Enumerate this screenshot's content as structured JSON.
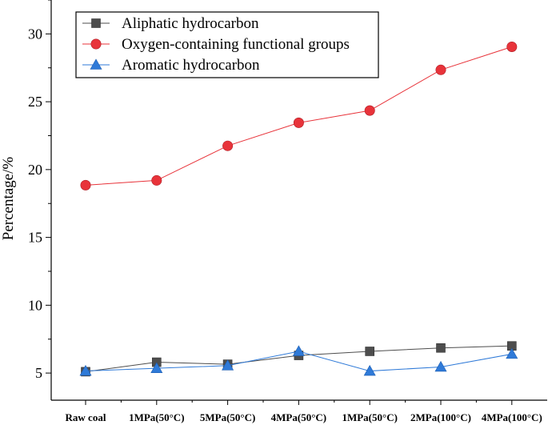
{
  "chart_data": {
    "type": "line",
    "title": "",
    "xlabel": "",
    "ylabel": "Percentage/%",
    "ylim": [
      3,
      32.5
    ],
    "yticks": [
      5,
      10,
      15,
      20,
      25,
      30
    ],
    "categories": [
      "Raw coal",
      "1MPa(50°C)",
      "5MPa(50°C)",
      "4MPa(50°C)",
      "1MPa(50°C)",
      "2MPa(100°C)",
      "4MPa(100°C)"
    ],
    "legend_position": "top-left",
    "series": [
      {
        "name": "Aliphatic hydrocarbon",
        "marker": "square",
        "color": "#4d4d4d",
        "values": [
          5.1,
          5.8,
          5.65,
          6.3,
          6.6,
          6.85,
          7.0
        ]
      },
      {
        "name": "Oxygen-containing functional groups",
        "marker": "circle",
        "color": "#e8333a",
        "values": [
          18.85,
          19.2,
          21.75,
          23.45,
          24.35,
          27.35,
          29.05
        ]
      },
      {
        "name": "Aromatic hydrocarbon",
        "marker": "triangle",
        "color": "#2f7ad8",
        "values": [
          5.15,
          5.35,
          5.55,
          6.6,
          5.15,
          5.45,
          6.4
        ]
      }
    ]
  }
}
